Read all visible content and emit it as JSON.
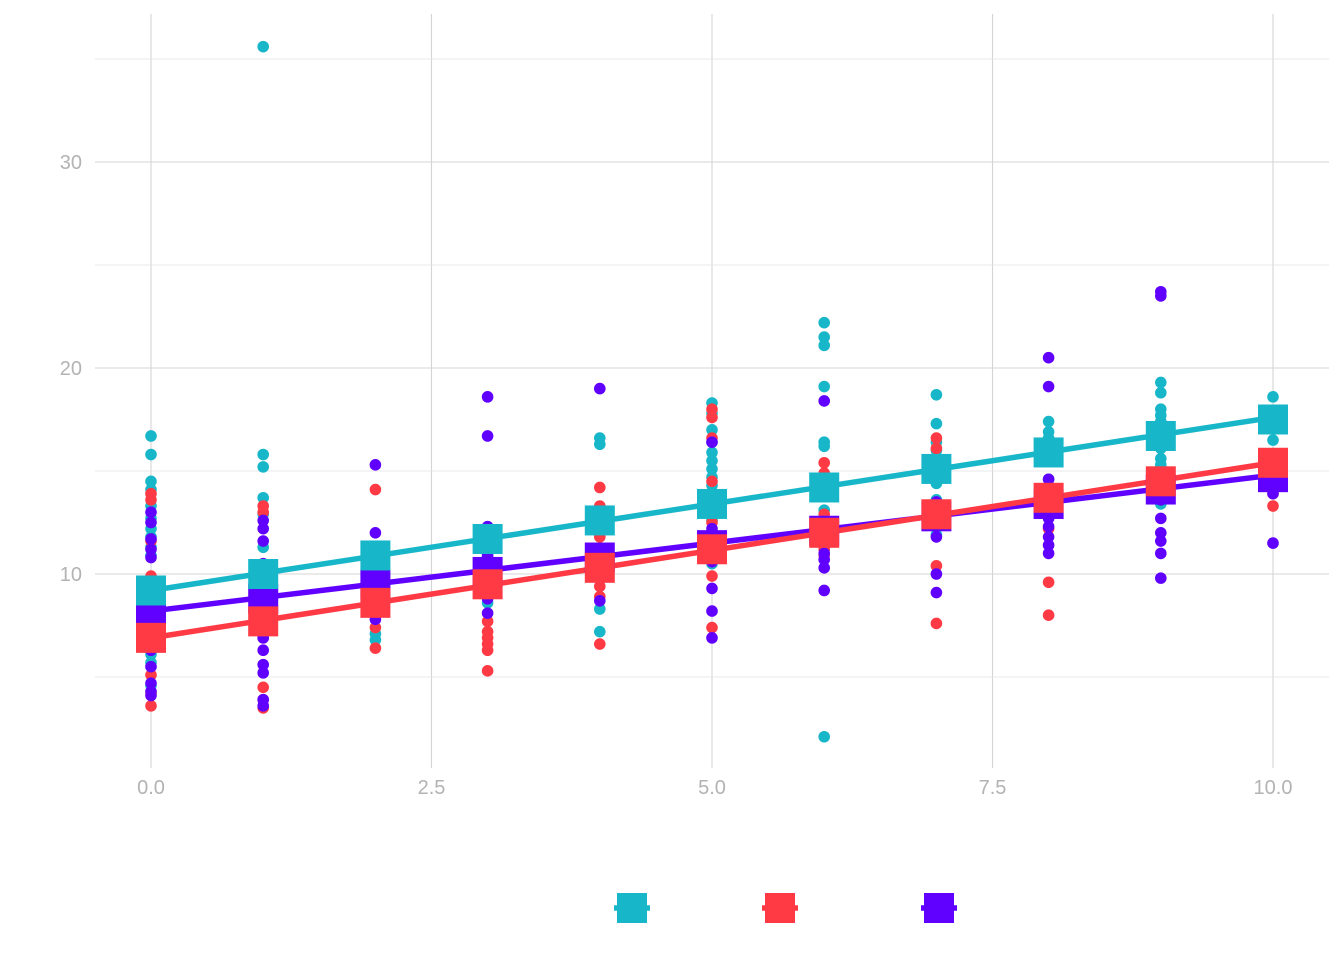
{
  "chart_data": {
    "type": "scatter",
    "title": "",
    "xlabel": "",
    "ylabel": "",
    "xlim": [
      -0.5,
      10.5
    ],
    "ylim": [
      0,
      36
    ],
    "x_ticks": [
      0,
      2.5,
      5,
      7.5,
      10
    ],
    "x_tick_labels": [
      "0.0",
      "2.5",
      "5.0",
      "7.5",
      "10.0"
    ],
    "y_ticks": [
      10,
      20,
      30
    ],
    "y_tick_labels": [
      "10",
      "20",
      "30"
    ],
    "grid": true,
    "legend_placement": "bottom",
    "series": [
      {
        "color": "#17b7c9",
        "points": [
          [
            0,
            16.7
          ],
          [
            0,
            15.8
          ],
          [
            0,
            14.5
          ],
          [
            0,
            14.1
          ],
          [
            0,
            13.3
          ],
          [
            0,
            12.7
          ],
          [
            0,
            12.2
          ],
          [
            0,
            11.8
          ],
          [
            0,
            11.3
          ],
          [
            0,
            10.9
          ],
          [
            0,
            9.8
          ],
          [
            0,
            9.2
          ],
          [
            0,
            8.4
          ],
          [
            0,
            7.8
          ],
          [
            0,
            6.9
          ],
          [
            0,
            6.1
          ],
          [
            0,
            5.7
          ],
          [
            0,
            4.6
          ],
          [
            1,
            35.6
          ],
          [
            1,
            15.8
          ],
          [
            1,
            15.2
          ],
          [
            1,
            13.7
          ],
          [
            1,
            12.9
          ],
          [
            1,
            11.3
          ],
          [
            1,
            10.0
          ],
          [
            1,
            9.6
          ],
          [
            1,
            9.0
          ],
          [
            1,
            8.3
          ],
          [
            1,
            7.5
          ],
          [
            2,
            11.3
          ],
          [
            2,
            10.5
          ],
          [
            2,
            9.6
          ],
          [
            2,
            7.1
          ],
          [
            2,
            6.8
          ],
          [
            3,
            12.3
          ],
          [
            3,
            11.4
          ],
          [
            3,
            10.8
          ],
          [
            3,
            9.5
          ],
          [
            3,
            8.9
          ],
          [
            3,
            8.6
          ],
          [
            4,
            16.6
          ],
          [
            4,
            16.3
          ],
          [
            4,
            12.8
          ],
          [
            4,
            11.9
          ],
          [
            4,
            10.0
          ],
          [
            4,
            8.3
          ],
          [
            4,
            7.2
          ],
          [
            5,
            18.3
          ],
          [
            5,
            17.8
          ],
          [
            5,
            17.0
          ],
          [
            5,
            16.4
          ],
          [
            5,
            15.9
          ],
          [
            5,
            15.5
          ],
          [
            5,
            15.1
          ],
          [
            5,
            14.7
          ],
          [
            5,
            14.3
          ],
          [
            5,
            13.8
          ],
          [
            5,
            13.2
          ],
          [
            5,
            12.6
          ],
          [
            5,
            11.8
          ],
          [
            5,
            11.2
          ],
          [
            5,
            10.5
          ],
          [
            6,
            22.2
          ],
          [
            6,
            21.5
          ],
          [
            6,
            21.1
          ],
          [
            6,
            19.1
          ],
          [
            6,
            16.4
          ],
          [
            6,
            16.2
          ],
          [
            6,
            14.6
          ],
          [
            6,
            13.9
          ],
          [
            6,
            13.1
          ],
          [
            6,
            12.2
          ],
          [
            6,
            2.1
          ],
          [
            7,
            18.7
          ],
          [
            7,
            17.3
          ],
          [
            7,
            16.4
          ],
          [
            7,
            16.0
          ],
          [
            7,
            15.5
          ],
          [
            7,
            14.4
          ],
          [
            7,
            13.6
          ],
          [
            7,
            12.4
          ],
          [
            7,
            11.9
          ],
          [
            8,
            17.4
          ],
          [
            8,
            16.9
          ],
          [
            8,
            16.6
          ],
          [
            8,
            16.0
          ],
          [
            8,
            15.5
          ],
          [
            8,
            14.6
          ],
          [
            8,
            13.9
          ],
          [
            9,
            19.3
          ],
          [
            9,
            18.8
          ],
          [
            9,
            18.0
          ],
          [
            9,
            17.7
          ],
          [
            9,
            17.4
          ],
          [
            9,
            17.1
          ],
          [
            9,
            16.6
          ],
          [
            9,
            16.1
          ],
          [
            9,
            15.6
          ],
          [
            9,
            15.3
          ],
          [
            9,
            14.9
          ],
          [
            9,
            13.4
          ],
          [
            10,
            18.6
          ],
          [
            10,
            17.7
          ],
          [
            10,
            17.4
          ],
          [
            10,
            16.5
          ],
          [
            10,
            15.5
          ]
        ],
        "means": [
          9.2,
          10.0,
          10.9,
          11.7,
          12.6,
          13.4,
          14.2,
          15.1,
          15.9,
          16.7,
          17.5
        ],
        "fit": [
          9.2,
          17.6
        ]
      },
      {
        "color": "#ff3a44",
        "points": [
          [
            0,
            13.9
          ],
          [
            0,
            13.6
          ],
          [
            0,
            11.6
          ],
          [
            0,
            9.9
          ],
          [
            0,
            8.4
          ],
          [
            0,
            7.3
          ],
          [
            0,
            6.5
          ],
          [
            0,
            5.1
          ],
          [
            0,
            4.2
          ],
          [
            0,
            3.6
          ],
          [
            1,
            13.3
          ],
          [
            1,
            13.0
          ],
          [
            1,
            10.3
          ],
          [
            1,
            8.8
          ],
          [
            1,
            7.6
          ],
          [
            1,
            6.9
          ],
          [
            1,
            4.5
          ],
          [
            1,
            3.9
          ],
          [
            1,
            3.5
          ],
          [
            2,
            14.1
          ],
          [
            2,
            8.6
          ],
          [
            2,
            8.2
          ],
          [
            2,
            7.4
          ],
          [
            2,
            6.4
          ],
          [
            3,
            10.1
          ],
          [
            3,
            9.5
          ],
          [
            3,
            8.9
          ],
          [
            3,
            7.7
          ],
          [
            3,
            7.2
          ],
          [
            3,
            6.9
          ],
          [
            3,
            6.6
          ],
          [
            3,
            6.3
          ],
          [
            3,
            5.3
          ],
          [
            4,
            14.2
          ],
          [
            4,
            13.3
          ],
          [
            4,
            11.8
          ],
          [
            4,
            10.2
          ],
          [
            4,
            9.4
          ],
          [
            4,
            8.9
          ],
          [
            4,
            6.6
          ],
          [
            5,
            18.0
          ],
          [
            5,
            17.6
          ],
          [
            5,
            16.6
          ],
          [
            5,
            14.5
          ],
          [
            5,
            12.5
          ],
          [
            5,
            11.4
          ],
          [
            5,
            10.6
          ],
          [
            5,
            9.9
          ],
          [
            5,
            7.4
          ],
          [
            6,
            15.4
          ],
          [
            6,
            14.9
          ],
          [
            6,
            12.9
          ],
          [
            6,
            11.6
          ],
          [
            6,
            11.2
          ],
          [
            6,
            10.9
          ],
          [
            7,
            16.6
          ],
          [
            7,
            16.1
          ],
          [
            7,
            13.1
          ],
          [
            7,
            12.8
          ],
          [
            7,
            10.4
          ],
          [
            7,
            7.6
          ],
          [
            8,
            14.0
          ],
          [
            8,
            12.9
          ],
          [
            8,
            12.2
          ],
          [
            8,
            9.6
          ],
          [
            8,
            8.0
          ],
          [
            9,
            14.7
          ],
          [
            9,
            14.2
          ],
          [
            9,
            13.9
          ],
          [
            10,
            15.5
          ],
          [
            10,
            13.9
          ],
          [
            10,
            13.3
          ]
        ],
        "means": [
          6.9,
          7.7,
          8.6,
          9.5,
          10.3,
          11.2,
          12.0,
          12.9,
          13.7,
          14.5,
          15.4
        ],
        "fit": [
          6.9,
          15.4
        ]
      },
      {
        "color": "#6000ff",
        "points": [
          [
            0,
            13.0
          ],
          [
            0,
            12.5
          ],
          [
            0,
            11.7
          ],
          [
            0,
            11.2
          ],
          [
            0,
            10.8
          ],
          [
            0,
            9.6
          ],
          [
            0,
            8.9
          ],
          [
            0,
            7.6
          ],
          [
            0,
            6.9
          ],
          [
            0,
            6.3
          ],
          [
            0,
            5.5
          ],
          [
            0,
            4.7
          ],
          [
            0,
            4.3
          ],
          [
            0,
            4.1
          ],
          [
            1,
            12.6
          ],
          [
            1,
            12.2
          ],
          [
            1,
            11.6
          ],
          [
            1,
            10.5
          ],
          [
            1,
            9.3
          ],
          [
            1,
            8.5
          ],
          [
            1,
            7.8
          ],
          [
            1,
            6.9
          ],
          [
            1,
            6.3
          ],
          [
            1,
            5.6
          ],
          [
            1,
            5.2
          ],
          [
            1,
            3.9
          ],
          [
            1,
            3.6
          ],
          [
            2,
            15.3
          ],
          [
            2,
            12.0
          ],
          [
            2,
            10.3
          ],
          [
            2,
            9.5
          ],
          [
            2,
            8.3
          ],
          [
            2,
            7.8
          ],
          [
            3,
            18.6
          ],
          [
            3,
            16.7
          ],
          [
            3,
            12.3
          ],
          [
            3,
            11.7
          ],
          [
            3,
            10.9
          ],
          [
            3,
            9.8
          ],
          [
            3,
            8.8
          ],
          [
            3,
            8.1
          ],
          [
            4,
            19.0
          ],
          [
            4,
            11.0
          ],
          [
            4,
            10.4
          ],
          [
            4,
            8.7
          ],
          [
            5,
            16.4
          ],
          [
            5,
            12.2
          ],
          [
            5,
            11.7
          ],
          [
            5,
            10.6
          ],
          [
            5,
            9.3
          ],
          [
            5,
            8.2
          ],
          [
            5,
            6.9
          ],
          [
            6,
            18.4
          ],
          [
            6,
            12.5
          ],
          [
            6,
            11.6
          ],
          [
            6,
            11.0
          ],
          [
            6,
            10.7
          ],
          [
            6,
            10.3
          ],
          [
            6,
            9.2
          ],
          [
            7,
            13.5
          ],
          [
            7,
            12.9
          ],
          [
            7,
            12.3
          ],
          [
            7,
            11.8
          ],
          [
            7,
            10.0
          ],
          [
            7,
            9.1
          ],
          [
            8,
            20.5
          ],
          [
            8,
            19.1
          ],
          [
            8,
            14.6
          ],
          [
            8,
            13.2
          ],
          [
            8,
            12.7
          ],
          [
            8,
            12.3
          ],
          [
            8,
            11.8
          ],
          [
            8,
            11.4
          ],
          [
            8,
            11.0
          ],
          [
            9,
            23.7
          ],
          [
            9,
            23.5
          ],
          [
            9,
            13.6
          ],
          [
            9,
            12.7
          ],
          [
            9,
            12.0
          ],
          [
            9,
            11.6
          ],
          [
            9,
            11.0
          ],
          [
            9,
            9.8
          ],
          [
            10,
            14.8
          ],
          [
            10,
            14.3
          ],
          [
            10,
            13.9
          ],
          [
            10,
            11.5
          ]
        ],
        "means": [
          8.2,
          8.8,
          9.5,
          10.1,
          10.8,
          11.4,
          12.1,
          12.8,
          13.4,
          14.1,
          14.7
        ],
        "fit": [
          8.2,
          14.8
        ]
      }
    ]
  }
}
